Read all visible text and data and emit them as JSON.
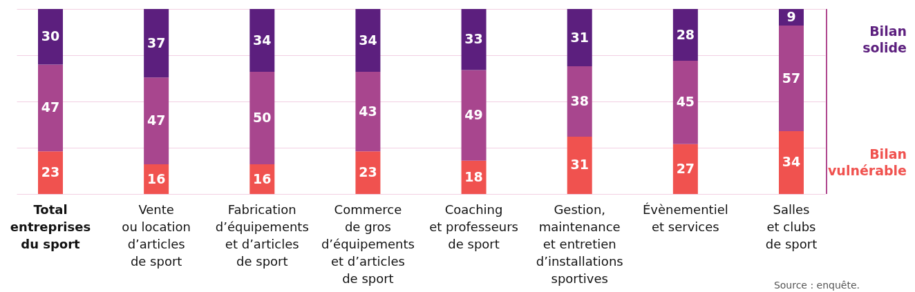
{
  "chart_data": {
    "type": "bar",
    "stacked": true,
    "categories": [
      "Total\nentreprises\ndu sport",
      "Vente\nou location\nd’articles\nde sport",
      "Fabrication\nd’équipements\net d’articles\nde sport",
      "Commerce\nde gros\nd’équipements\net d’articles\nde sport",
      "Coaching\net professeurs\nde sport",
      "Gestion,\nmaintenance\net entretien\nd’installations\nsportives",
      "Évènementiel\net services",
      "Salles\net clubs\nde sport"
    ],
    "series": [
      {
        "name": "Bilan vulnérable",
        "color": "#f0524f",
        "values": [
          23,
          16,
          16,
          23,
          18,
          31,
          27,
          34
        ]
      },
      {
        "color": "#a8468e",
        "values": [
          47,
          47,
          50,
          43,
          49,
          38,
          45,
          57
        ]
      },
      {
        "name": "Bilan solide",
        "color": "#5c1f7e",
        "values": [
          30,
          37,
          34,
          34,
          33,
          31,
          28,
          9
        ]
      }
    ],
    "ylim": [
      0,
      100
    ],
    "yticks": [
      {
        "value": 0,
        "label": null
      },
      {
        "value": 25,
        "label": null
      },
      {
        "value": 50,
        "label": null
      },
      {
        "value": 75,
        "label": null
      },
      {
        "value": 100,
        "label": null
      }
    ],
    "tick_labels": "x",
    "grid": "y",
    "data_labels": true,
    "annotations": [
      "Source : enquête."
    ]
  }
}
